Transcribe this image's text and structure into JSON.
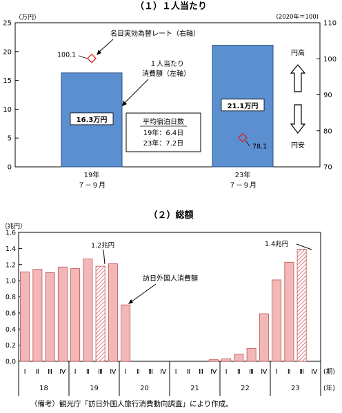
{
  "chart_data": [
    {
      "type": "bar",
      "title": "（１）１人当たり",
      "categories": [
        "19年\n７－９月",
        "23年\n７－９月"
      ],
      "series": [
        {
          "name": "１人当たり消費額（左軸）",
          "axis": "left",
          "unit": "万円",
          "values": [
            16.3,
            21.1
          ]
        },
        {
          "name": "名目実効為替レート（右軸）",
          "axis": "right",
          "type": "scatter",
          "marker": "diamond",
          "values": [
            100.1,
            78.1
          ]
        }
      ],
      "bar_labels": [
        "16.3万円",
        "21.1万円"
      ],
      "point_labels": [
        "100.1",
        "78.1"
      ],
      "left_axis": {
        "label": "（万円）",
        "ylim": [
          0,
          25
        ],
        "ticks": [
          "0",
          "5",
          "10",
          "15",
          "20",
          "25"
        ]
      },
      "right_axis": {
        "label": "(2020年＝100)",
        "ylim": [
          70,
          110
        ],
        "ticks": [
          "70",
          "80",
          "90",
          "100",
          "110"
        ]
      },
      "annotations": {
        "rate_label": "名目実効為替レート（右軸）",
        "spend_label_line1": "１人当たり",
        "spend_label_line2": "消費額（左軸）",
        "yen_strong": "円高",
        "yen_weak": "円安",
        "stay_title": "平均宿泊日数",
        "stay_19": "19年：6.4日",
        "stay_23": "23年：7.2日"
      },
      "colors": {
        "bar": "#5b8fd0",
        "marker": "#e02020"
      },
      "grid": false
    },
    {
      "type": "bar",
      "title": "（２）総額",
      "ylabel": "（兆円）",
      "ylim": [
        0,
        1.6
      ],
      "yticks": [
        "0.0",
        "0.2",
        "0.4",
        "0.6",
        "0.8",
        "1.0",
        "1.2",
        "1.4",
        "1.6"
      ],
      "quarters": [
        "Ⅰ",
        "Ⅱ",
        "Ⅲ",
        "Ⅳ"
      ],
      "years": [
        "18",
        "19",
        "20",
        "21",
        "22",
        "23"
      ],
      "x_unit_period": "(期)",
      "x_unit_year": "(年)",
      "series": [
        {
          "name": "訪日外国人消費額",
          "values": [
            1.11,
            1.14,
            1.1,
            1.17,
            1.15,
            1.27,
            1.18,
            1.21,
            0.7,
            0.0,
            0.0,
            0.0,
            0.0,
            0.0,
            0.0,
            0.02,
            0.03,
            0.09,
            0.16,
            0.59,
            1.01,
            1.23,
            1.39
          ],
          "hatched_index": [
            6,
            22
          ]
        }
      ],
      "annotations": {
        "label_19": "1.2兆円",
        "label_23": "1.4兆円",
        "series_label": "訪日外国人消費額"
      },
      "colors": {
        "bar": "#f2b8b8",
        "bar_stroke": "#c0504d"
      },
      "grid": false
    }
  ],
  "note": "（備考）観光庁「訪日外国人旅行消費動向調査」により作成。"
}
